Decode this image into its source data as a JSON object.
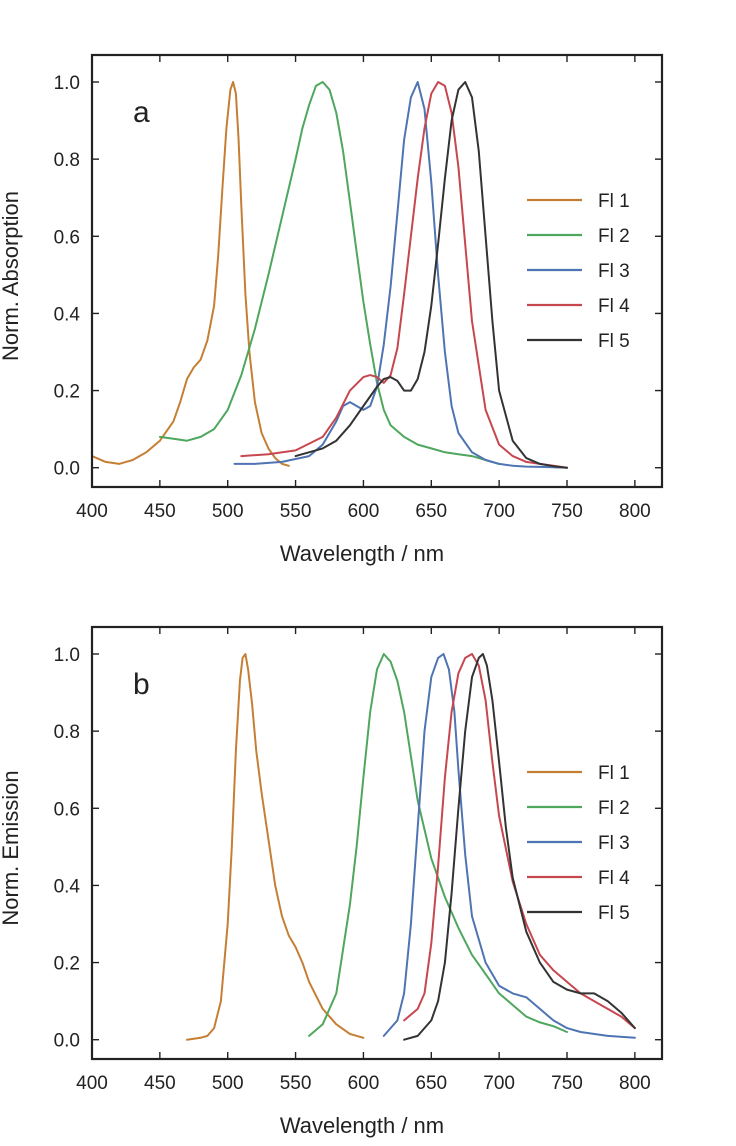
{
  "chart_data": [
    {
      "type": "line",
      "panel_label": "a",
      "xlabel": "Wavelength / nm",
      "ylabel": "Norm. Absorption",
      "xlim": [
        400,
        820
      ],
      "ylim": [
        -0.05,
        1.07
      ],
      "xticks": [
        400,
        450,
        500,
        550,
        600,
        650,
        700,
        750,
        800
      ],
      "yticks": [
        0.0,
        0.2,
        0.4,
        0.6,
        0.8,
        1.0
      ],
      "xtick_labels": [
        "400",
        "450",
        "500",
        "550",
        "600",
        "650",
        "700",
        "750",
        "800"
      ],
      "ytick_labels": [
        "0.0",
        "0.2",
        "0.4",
        "0.6",
        "0.8",
        "1.0"
      ],
      "legend_position": "right",
      "grid": false,
      "series": [
        {
          "name": "Fl 1",
          "color": "#c57f34",
          "x": [
            400,
            410,
            420,
            430,
            440,
            450,
            460,
            465,
            470,
            475,
            480,
            485,
            490,
            493,
            496,
            499,
            502,
            504,
            506,
            508,
            510,
            513,
            516,
            520,
            525,
            530,
            535,
            540,
            545
          ],
          "y": [
            0.03,
            0.015,
            0.01,
            0.02,
            0.04,
            0.07,
            0.12,
            0.17,
            0.23,
            0.26,
            0.28,
            0.33,
            0.42,
            0.55,
            0.72,
            0.88,
            0.98,
            1.0,
            0.97,
            0.85,
            0.68,
            0.45,
            0.3,
            0.17,
            0.09,
            0.05,
            0.025,
            0.01,
            0.005
          ]
        },
        {
          "name": "Fl 2",
          "color": "#4fa65d",
          "x": [
            450,
            460,
            470,
            480,
            490,
            500,
            510,
            520,
            530,
            540,
            550,
            555,
            560,
            565,
            570,
            575,
            580,
            585,
            590,
            595,
            600,
            605,
            610,
            615,
            620,
            630,
            640,
            650,
            660,
            670,
            680,
            690,
            700
          ],
          "y": [
            0.08,
            0.075,
            0.07,
            0.08,
            0.1,
            0.15,
            0.24,
            0.36,
            0.5,
            0.65,
            0.8,
            0.88,
            0.94,
            0.99,
            1.0,
            0.98,
            0.92,
            0.82,
            0.69,
            0.56,
            0.43,
            0.32,
            0.22,
            0.15,
            0.11,
            0.08,
            0.06,
            0.05,
            0.04,
            0.035,
            0.03,
            0.02,
            0.01
          ]
        },
        {
          "name": "Fl 3",
          "color": "#4f74b3",
          "x": [
            505,
            520,
            540,
            560,
            570,
            580,
            585,
            590,
            595,
            600,
            605,
            610,
            615,
            620,
            625,
            630,
            635,
            640,
            645,
            650,
            655,
            660,
            665,
            670,
            680,
            690,
            700,
            710,
            720,
            730,
            740,
            750
          ],
          "y": [
            0.01,
            0.01,
            0.015,
            0.03,
            0.06,
            0.12,
            0.16,
            0.17,
            0.16,
            0.15,
            0.16,
            0.21,
            0.32,
            0.47,
            0.66,
            0.85,
            0.96,
            1.0,
            0.93,
            0.74,
            0.5,
            0.3,
            0.16,
            0.09,
            0.04,
            0.02,
            0.01,
            0.005,
            0.003,
            0.002,
            0.001,
            0.0
          ]
        },
        {
          "name": "Fl 4",
          "color": "#c7474f",
          "x": [
            510,
            530,
            550,
            570,
            580,
            590,
            600,
            605,
            610,
            615,
            620,
            625,
            630,
            635,
            640,
            645,
            650,
            655,
            660,
            665,
            670,
            675,
            680,
            690,
            700,
            710,
            720,
            730,
            740,
            750
          ],
          "y": [
            0.03,
            0.035,
            0.045,
            0.08,
            0.13,
            0.2,
            0.235,
            0.24,
            0.235,
            0.22,
            0.24,
            0.31,
            0.45,
            0.6,
            0.75,
            0.88,
            0.97,
            1.0,
            0.99,
            0.92,
            0.78,
            0.58,
            0.38,
            0.15,
            0.06,
            0.03,
            0.015,
            0.01,
            0.005,
            0.0
          ]
        },
        {
          "name": "Fl 5",
          "color": "#333333",
          "x": [
            550,
            570,
            580,
            590,
            600,
            610,
            615,
            620,
            625,
            630,
            635,
            640,
            645,
            650,
            655,
            660,
            665,
            670,
            675,
            680,
            685,
            690,
            695,
            700,
            710,
            720,
            730,
            740,
            750
          ],
          "y": [
            0.03,
            0.05,
            0.07,
            0.11,
            0.16,
            0.21,
            0.23,
            0.235,
            0.225,
            0.2,
            0.2,
            0.23,
            0.3,
            0.42,
            0.58,
            0.75,
            0.9,
            0.98,
            1.0,
            0.96,
            0.82,
            0.6,
            0.38,
            0.2,
            0.07,
            0.025,
            0.01,
            0.004,
            0.0
          ]
        }
      ]
    },
    {
      "type": "line",
      "panel_label": "b",
      "xlabel": "Wavelength / nm",
      "ylabel": "Norm. Emission",
      "xlim": [
        400,
        820
      ],
      "ylim": [
        -0.05,
        1.07
      ],
      "xticks": [
        400,
        450,
        500,
        550,
        600,
        650,
        700,
        750,
        800
      ],
      "yticks": [
        0.0,
        0.2,
        0.4,
        0.6,
        0.8,
        1.0
      ],
      "xtick_labels": [
        "400",
        "450",
        "500",
        "550",
        "600",
        "650",
        "700",
        "750",
        "800"
      ],
      "ytick_labels": [
        "0.0",
        "0.2",
        "0.4",
        "0.6",
        "0.8",
        "1.0"
      ],
      "legend_position": "right",
      "grid": false,
      "series": [
        {
          "name": "Fl 1",
          "color": "#c57f34",
          "x": [
            470,
            480,
            485,
            490,
            495,
            500,
            503,
            506,
            509,
            511,
            513,
            515,
            518,
            521,
            525,
            530,
            535,
            540,
            545,
            550,
            555,
            560,
            570,
            580,
            590,
            600
          ],
          "y": [
            0.0,
            0.005,
            0.01,
            0.03,
            0.1,
            0.3,
            0.5,
            0.75,
            0.93,
            0.99,
            1.0,
            0.96,
            0.87,
            0.75,
            0.64,
            0.52,
            0.4,
            0.32,
            0.27,
            0.24,
            0.2,
            0.15,
            0.08,
            0.04,
            0.015,
            0.005
          ]
        },
        {
          "name": "Fl 2",
          "color": "#4fa65d",
          "x": [
            560,
            570,
            580,
            590,
            595,
            600,
            605,
            610,
            615,
            620,
            625,
            630,
            640,
            650,
            660,
            670,
            680,
            690,
            700,
            710,
            720,
            730,
            740,
            750
          ],
          "y": [
            0.01,
            0.04,
            0.12,
            0.35,
            0.5,
            0.68,
            0.85,
            0.96,
            1.0,
            0.98,
            0.93,
            0.85,
            0.62,
            0.47,
            0.37,
            0.29,
            0.22,
            0.17,
            0.12,
            0.09,
            0.06,
            0.045,
            0.035,
            0.02
          ]
        },
        {
          "name": "Fl 3",
          "color": "#4f74b3",
          "x": [
            615,
            625,
            630,
            635,
            640,
            645,
            650,
            655,
            659,
            663,
            667,
            670,
            675,
            680,
            690,
            700,
            710,
            720,
            730,
            740,
            750,
            760,
            780,
            800
          ],
          "y": [
            0.01,
            0.05,
            0.12,
            0.3,
            0.55,
            0.8,
            0.94,
            0.99,
            1.0,
            0.96,
            0.85,
            0.7,
            0.48,
            0.32,
            0.2,
            0.14,
            0.12,
            0.11,
            0.08,
            0.05,
            0.03,
            0.02,
            0.01,
            0.005
          ]
        },
        {
          "name": "Fl 4",
          "color": "#c7474f",
          "x": [
            630,
            640,
            645,
            650,
            655,
            660,
            665,
            670,
            675,
            680,
            685,
            690,
            695,
            700,
            710,
            720,
            730,
            740,
            750,
            760,
            770,
            780,
            790,
            800
          ],
          "y": [
            0.05,
            0.08,
            0.12,
            0.25,
            0.45,
            0.68,
            0.85,
            0.95,
            0.99,
            1.0,
            0.97,
            0.88,
            0.72,
            0.58,
            0.41,
            0.3,
            0.22,
            0.18,
            0.15,
            0.12,
            0.1,
            0.08,
            0.06,
            0.03
          ]
        },
        {
          "name": "Fl 5",
          "color": "#333333",
          "x": [
            630,
            640,
            650,
            655,
            660,
            665,
            670,
            675,
            680,
            685,
            688,
            691,
            695,
            700,
            705,
            710,
            720,
            730,
            740,
            750,
            760,
            770,
            780,
            790,
            800
          ],
          "y": [
            0.0,
            0.01,
            0.05,
            0.1,
            0.2,
            0.38,
            0.6,
            0.8,
            0.94,
            0.99,
            1.0,
            0.97,
            0.88,
            0.72,
            0.55,
            0.42,
            0.28,
            0.2,
            0.15,
            0.13,
            0.12,
            0.12,
            0.1,
            0.07,
            0.03
          ]
        }
      ]
    }
  ]
}
